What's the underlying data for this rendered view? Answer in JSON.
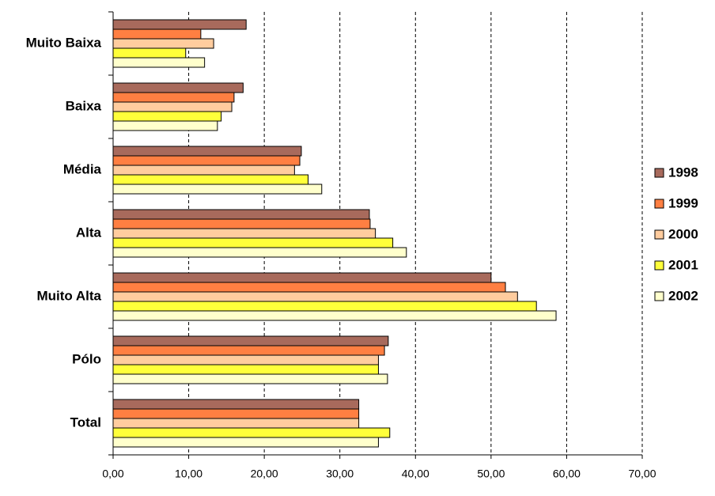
{
  "chart_data": {
    "type": "hbar",
    "categories": [
      "Muito Baixa",
      "Baixa",
      "Média",
      "Alta",
      "Muito Alta",
      "Pólo",
      "Total"
    ],
    "series": [
      {
        "name": "1998",
        "color": "#a86a5c",
        "values": [
          17.6,
          17.2,
          24.9,
          33.9,
          50.0,
          36.4,
          32.5
        ]
      },
      {
        "name": "1999",
        "color": "#ff7f42",
        "values": [
          11.6,
          16.0,
          24.7,
          34.0,
          51.9,
          35.9,
          32.5
        ]
      },
      {
        "name": "2000",
        "color": "#ffcc9e",
        "values": [
          13.3,
          15.7,
          24.0,
          34.7,
          53.5,
          35.1,
          32.5
        ]
      },
      {
        "name": "2001",
        "color": "#ffff3a",
        "values": [
          9.6,
          14.3,
          25.8,
          37.0,
          56.0,
          35.1,
          36.6
        ]
      },
      {
        "name": "2002",
        "color": "#ffffcc",
        "values": [
          12.1,
          13.8,
          27.6,
          38.8,
          58.6,
          36.3,
          35.1
        ]
      }
    ],
    "xlim": [
      0,
      70
    ],
    "xticks": [
      {
        "value": 0,
        "label": "0,00"
      },
      {
        "value": 10,
        "label": "10,00"
      },
      {
        "value": 20,
        "label": "20,00"
      },
      {
        "value": 30,
        "label": "30,00"
      },
      {
        "value": 40,
        "label": "40,00"
      },
      {
        "value": 50,
        "label": "50,00"
      },
      {
        "value": 60,
        "label": "60,00"
      },
      {
        "value": 70,
        "label": "70,00"
      }
    ],
    "grid": true,
    "legend": "right"
  }
}
